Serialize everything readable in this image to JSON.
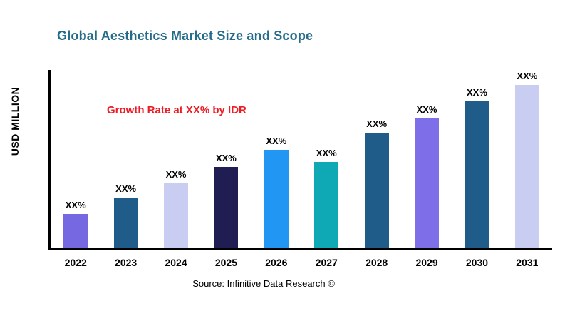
{
  "header": {
    "title": "Global Aesthetics Market Size and Scope"
  },
  "annotation": {
    "text": "Growth Rate at XX% by IDR",
    "color": "#ec1c24"
  },
  "footer": {
    "source": "Source: Infinitive Data Research ©"
  },
  "chart_data": {
    "type": "bar",
    "title": "Global Aesthetics Market Size and Scope",
    "xlabel": "",
    "ylabel": "USD MILLION",
    "ylim": [
      0,
      250
    ],
    "grid": false,
    "legend": "none",
    "categories": [
      "2022",
      "2023",
      "2024",
      "2025",
      "2026",
      "2027",
      "2028",
      "2029",
      "2030",
      "2031"
    ],
    "values": [
      47,
      70,
      90,
      113,
      138,
      120,
      162,
      182,
      206,
      229
    ],
    "bar_labels": [
      "XX%",
      "XX%",
      "XX%",
      "XX%",
      "XX%",
      "XX%",
      "XX%",
      "XX%",
      "XX%",
      "XX%"
    ],
    "bar_colors": [
      "#7668e0",
      "#1f5c8a",
      "#c9cdf1",
      "#201d52",
      "#2196f3",
      "#0fa8b5",
      "#1f5c8a",
      "#7e6fe8",
      "#1f5c8a",
      "#c9cdf1"
    ],
    "axis_color": "#000000",
    "annotation": "Growth Rate at XX% by IDR"
  }
}
